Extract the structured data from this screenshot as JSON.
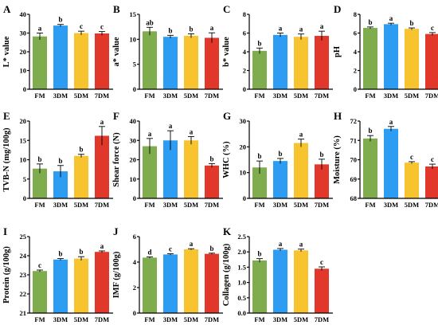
{
  "colors": {
    "FM": "#7fad4e",
    "3DM": "#2c9df2",
    "5DM": "#f7c32e",
    "7DM": "#e2382b"
  },
  "chart_data": [
    {
      "panel": "A",
      "type": "bar",
      "ylabel": "L* value",
      "categories": [
        "FM",
        "3DM",
        "5DM",
        "7DM"
      ],
      "values": [
        28.2,
        34.0,
        30.0,
        29.8
      ],
      "errors": [
        1.8,
        0.6,
        1.0,
        1.0
      ],
      "sig": [
        "a",
        "b",
        "c",
        "c"
      ],
      "ylim": [
        0,
        40
      ],
      "yticks": [
        "0",
        "10",
        "20",
        "30",
        "40"
      ]
    },
    {
      "panel": "B",
      "type": "bar",
      "ylabel": "a* value",
      "categories": [
        "FM",
        "3DM",
        "5DM",
        "7DM"
      ],
      "values": [
        11.6,
        10.5,
        10.7,
        10.3
      ],
      "errors": [
        0.8,
        0.3,
        0.4,
        1.0
      ],
      "sig": [
        "ab",
        "b",
        "b",
        "a"
      ],
      "ylim": [
        0,
        15
      ],
      "yticks": [
        "0",
        "5",
        "10",
        "15"
      ]
    },
    {
      "panel": "C",
      "type": "bar",
      "ylabel": "b* value",
      "categories": [
        "FM",
        "3DM",
        "5DM",
        "7DM"
      ],
      "values": [
        4.1,
        5.8,
        5.6,
        5.7
      ],
      "errors": [
        0.3,
        0.2,
        0.3,
        0.5
      ],
      "sig": [
        "b",
        "a",
        "a",
        "a"
      ],
      "ylim": [
        0,
        8
      ],
      "yticks": [
        "0",
        "2",
        "4",
        "6",
        "8"
      ]
    },
    {
      "panel": "D",
      "type": "bar",
      "ylabel": "pH",
      "categories": [
        "FM",
        "3DM",
        "5DM",
        "7DM"
      ],
      "values": [
        6.55,
        6.95,
        6.45,
        5.9
      ],
      "errors": [
        0.1,
        0.1,
        0.1,
        0.15
      ],
      "sig": [
        "b",
        "a",
        "b",
        "c"
      ],
      "ylim": [
        0,
        8
      ],
      "yticks": [
        "0",
        "2",
        "4",
        "6",
        "8"
      ]
    },
    {
      "panel": "E",
      "type": "bar",
      "ylabel": "TVB-N (mg/100g)",
      "categories": [
        "FM",
        "3DM",
        "5DM",
        "7DM"
      ],
      "values": [
        7.7,
        7.0,
        11.0,
        16.2
      ],
      "errors": [
        1.2,
        1.5,
        0.4,
        2.4
      ],
      "sig": [
        "b",
        "b",
        "b",
        "a"
      ],
      "ylim": [
        0,
        20
      ],
      "yticks": [
        "0",
        "5",
        "10",
        "15",
        "20"
      ]
    },
    {
      "panel": "F",
      "type": "bar",
      "ylabel": "Shear force (N)",
      "categories": [
        "FM",
        "3DM",
        "5DM",
        "7DM"
      ],
      "values": [
        27.0,
        30.0,
        30.0,
        17.0
      ],
      "errors": [
        4.0,
        5.0,
        2.0,
        1.0
      ],
      "sig": [
        "a",
        "a",
        "a",
        "b"
      ],
      "ylim": [
        0,
        40
      ],
      "yticks": [
        "0",
        "10",
        "20",
        "30",
        "40"
      ]
    },
    {
      "panel": "G",
      "type": "bar",
      "ylabel": "WHC (%)",
      "categories": [
        "FM",
        "3DM",
        "5DM",
        "7DM"
      ],
      "values": [
        12.0,
        14.5,
        21.5,
        13.2
      ],
      "errors": [
        2.5,
        1.0,
        1.5,
        2.0
      ],
      "sig": [
        "b",
        "b",
        "a",
        "b"
      ],
      "ylim": [
        0,
        30
      ],
      "yticks": [
        "0",
        "10",
        "20",
        "30"
      ]
    },
    {
      "panel": "H",
      "type": "bar",
      "ylabel": "Moisture (%)",
      "categories": [
        "FM",
        "3DM",
        "5DM",
        "7DM"
      ],
      "values": [
        71.1,
        71.6,
        69.85,
        69.65
      ],
      "errors": [
        0.15,
        0.12,
        0.05,
        0.12
      ],
      "sig": [
        "b",
        "a",
        "c",
        "c"
      ],
      "ylim": [
        68,
        72
      ],
      "yticks": [
        "68",
        "69",
        "70",
        "71",
        "72"
      ]
    },
    {
      "panel": "I",
      "type": "bar",
      "ylabel": "Protein (g/100g)",
      "categories": [
        "FM",
        "3DM",
        "5DM",
        "7DM"
      ],
      "values": [
        23.2,
        23.8,
        23.85,
        24.2
      ],
      "errors": [
        0.05,
        0.05,
        0.1,
        0.05
      ],
      "sig": [
        "c",
        "b",
        "b",
        "a"
      ],
      "ylim": [
        21,
        25
      ],
      "yticks": [
        "21",
        "22",
        "23",
        "24",
        "25"
      ]
    },
    {
      "panel": "J",
      "type": "bar",
      "ylabel": "IMF (g/100g)",
      "categories": [
        "FM",
        "3DM",
        "5DM",
        "7DM"
      ],
      "values": [
        4.35,
        4.6,
        5.0,
        4.65
      ],
      "errors": [
        0.05,
        0.05,
        0.05,
        0.05
      ],
      "sig": [
        "d",
        "c",
        "a",
        "b"
      ],
      "ylim": [
        0,
        6
      ],
      "yticks": [
        "0",
        "2",
        "4",
        "6"
      ]
    },
    {
      "panel": "K",
      "type": "bar",
      "ylabel": "Collagen (g/100g)",
      "categories": [
        "FM",
        "3DM",
        "5DM",
        "7DM"
      ],
      "values": [
        1.72,
        2.07,
        2.05,
        1.45
      ],
      "errors": [
        0.06,
        0.04,
        0.04,
        0.06
      ],
      "sig": [
        "b",
        "a",
        "a",
        "c"
      ],
      "ylim": [
        0,
        2.5
      ],
      "yticks": [
        "0.0",
        "0.5",
        "1.0",
        "1.5",
        "2.0",
        "2.5"
      ]
    }
  ]
}
